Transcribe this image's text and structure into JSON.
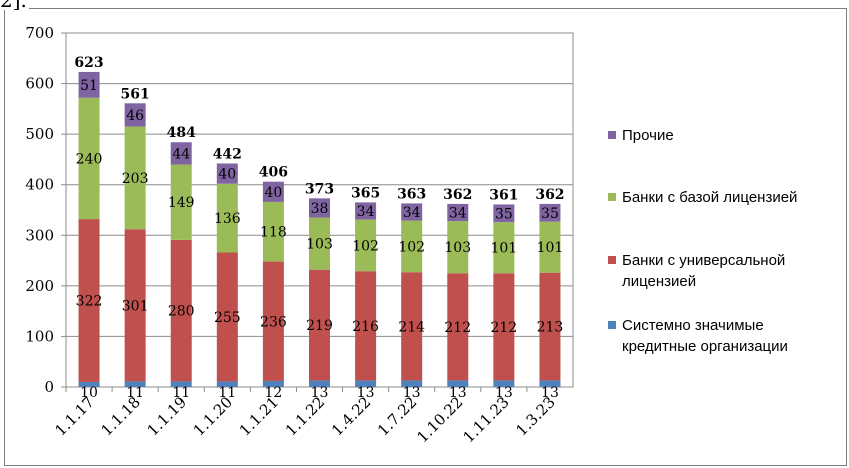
{
  "top_fragment": "2].",
  "chart_data": {
    "type": "bar",
    "stacked": true,
    "categories": [
      "1.1.17",
      "1.1.18",
      "1.1.19",
      "1.1.20",
      "1.1.21",
      "1.1.22",
      "1.4.22",
      "1.7.22",
      "1.10.22",
      "1.11.23",
      "1.3.23"
    ],
    "ylim": [
      0,
      700
    ],
    "yticks": [
      0,
      100,
      200,
      300,
      400,
      500,
      600,
      700
    ],
    "grid": true,
    "legend_position": "right",
    "series": [
      {
        "name": "Системно значимые кредитные организации",
        "color": "#4f81bd",
        "values": [
          10,
          11,
          11,
          11,
          12,
          13,
          13,
          13,
          13,
          13,
          13
        ]
      },
      {
        "name": "Банки с универсальной лицензией",
        "color": "#c0504d",
        "values": [
          322,
          301,
          280,
          255,
          236,
          219,
          216,
          214,
          212,
          212,
          213
        ]
      },
      {
        "name": "Банки с базой лицензией",
        "color": "#9bbb59",
        "values": [
          240,
          203,
          149,
          136,
          118,
          103,
          102,
          102,
          103,
          101,
          101
        ]
      },
      {
        "name": "Прочие",
        "color": "#8064a2",
        "values": [
          51,
          46,
          44,
          40,
          40,
          38,
          34,
          34,
          34,
          35,
          35
        ]
      }
    ],
    "totals": [
      623,
      561,
      484,
      442,
      406,
      373,
      365,
      363,
      362,
      361,
      362
    ],
    "legend": [
      {
        "series": 3,
        "lines": [
          "Прочие"
        ]
      },
      {
        "series": 2,
        "lines": [
          "Банки с базой лицензией"
        ]
      },
      {
        "series": 1,
        "lines": [
          "Банки с универсальной",
          "лицензией"
        ]
      },
      {
        "series": 0,
        "lines": [
          "Системно значимые",
          "кредитные организации"
        ]
      }
    ]
  }
}
